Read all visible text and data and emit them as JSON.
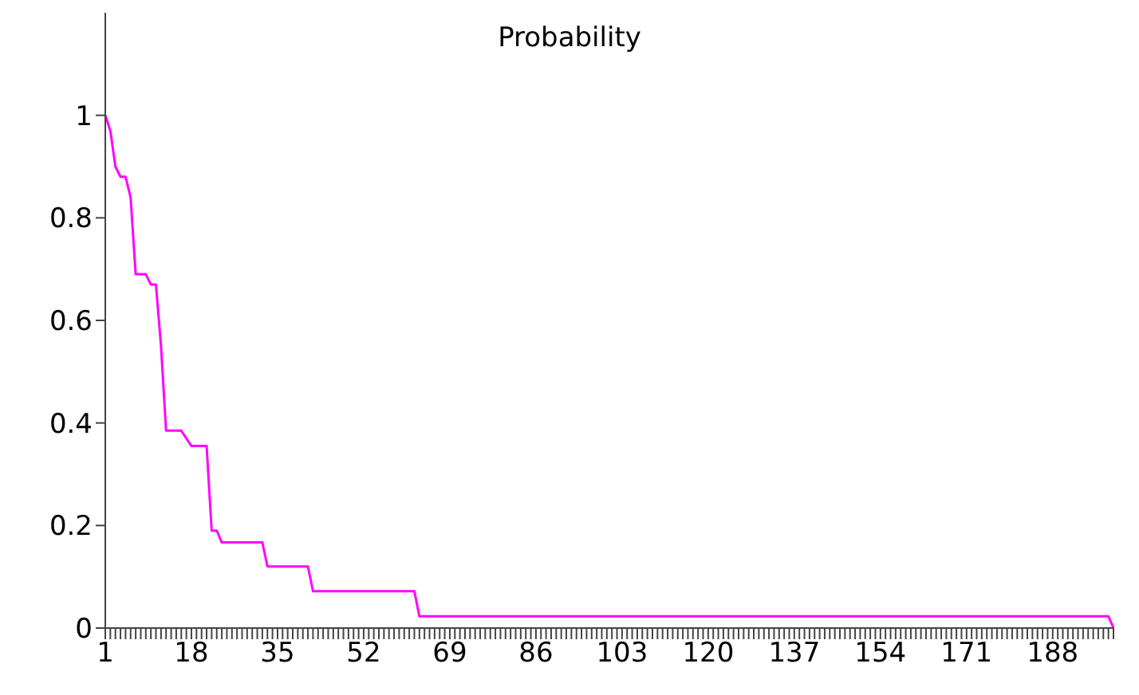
{
  "chart_data": {
    "type": "line",
    "title": "Probability",
    "categories": [
      "1",
      null,
      null,
      null,
      null,
      null,
      null,
      null,
      null,
      null,
      null,
      null,
      null,
      null,
      null,
      null,
      null,
      "18",
      null,
      null,
      null,
      null,
      null,
      null,
      null,
      null,
      null,
      null,
      null,
      null,
      null,
      null,
      null,
      null,
      "35",
      null,
      null,
      null,
      null,
      null,
      null,
      null,
      null,
      null,
      null,
      null,
      null,
      null,
      null,
      null,
      null,
      "52",
      null,
      null,
      null,
      null,
      null,
      null,
      null,
      null,
      null,
      null,
      null,
      null,
      null,
      null,
      null,
      null,
      "69",
      null,
      null,
      null,
      null,
      null,
      null,
      null,
      null,
      null,
      null,
      null,
      null,
      null,
      null,
      null,
      null,
      "86",
      null,
      null,
      null,
      null,
      null,
      null,
      null,
      null,
      null,
      null,
      null,
      null,
      null,
      null,
      null,
      null,
      "103",
      null,
      null,
      null,
      null,
      null,
      null,
      null,
      null,
      null,
      null,
      null,
      null,
      null,
      null,
      null,
      null,
      "120",
      null,
      null,
      null,
      null,
      null,
      null,
      null,
      null,
      null,
      null,
      null,
      null,
      null,
      null,
      null,
      null,
      "137",
      null,
      null,
      null,
      null,
      null,
      null,
      null,
      null,
      null,
      null,
      null,
      null,
      null,
      null,
      null,
      null,
      "154",
      null,
      null,
      null,
      null,
      null,
      null,
      null,
      null,
      null,
      null,
      null,
      null,
      null,
      null,
      null,
      null,
      "171",
      null,
      null,
      null,
      null,
      null,
      null,
      null,
      null,
      null,
      null,
      null,
      null,
      null,
      null,
      null,
      null,
      "188",
      null,
      null,
      null,
      null,
      null,
      null,
      null,
      null,
      null,
      null,
      null,
      null
    ],
    "series": [
      {
        "color": "#ff00ff",
        "values": [
          1,
          0.97,
          0.9,
          0.88,
          0.88,
          0.84,
          0.69,
          0.69,
          0.69,
          0.67,
          0.67,
          0.55,
          0.385,
          0.385,
          0.385,
          0.385,
          0.37,
          0.355,
          0.355,
          0.355,
          0.355,
          0.19,
          0.19,
          0.167,
          0.167,
          0.167,
          0.167,
          0.167,
          0.167,
          0.167,
          0.167,
          0.167,
          0.12,
          0.12,
          0.12,
          0.12,
          0.12,
          0.12,
          0.12,
          0.12,
          0.12,
          0.072,
          0.072,
          0.072,
          0.072,
          0.072,
          0.072,
          0.072,
          0.072,
          0.072,
          0.072,
          0.072,
          0.072,
          0.072,
          0.072,
          0.072,
          0.072,
          0.072,
          0.072,
          0.072,
          0.072,
          0.072,
          0.023,
          0.023,
          0.023,
          0.023,
          0.023,
          0.023,
          0.023,
          0.023,
          0.023,
          0.023,
          0.023,
          0.023,
          0.023,
          0.023,
          0.023,
          0.023,
          0.023,
          0.023,
          0.023,
          0.023,
          0.023,
          0.023,
          0.023,
          0.023,
          0.023,
          0.023,
          0.023,
          0.023,
          0.023,
          0.023,
          0.023,
          0.023,
          0.023,
          0.023,
          0.023,
          0.023,
          0.023,
          0.023,
          0.023,
          0.023,
          0.023,
          0.023,
          0.023,
          0.023,
          0.023,
          0.023,
          0.023,
          0.023,
          0.023,
          0.023,
          0.023,
          0.023,
          0.023,
          0.023,
          0.023,
          0.023,
          0.023,
          0.023,
          0.023,
          0.023,
          0.023,
          0.023,
          0.023,
          0.023,
          0.023,
          0.023,
          0.023,
          0.023,
          0.023,
          0.023,
          0.023,
          0.023,
          0.023,
          0.023,
          0.023,
          0.023,
          0.023,
          0.023,
          0.023,
          0.023,
          0.023,
          0.023,
          0.023,
          0.023,
          0.023,
          0.023,
          0.023,
          0.023,
          0.023,
          0.023,
          0.023,
          0.023,
          0.023,
          0.023,
          0.023,
          0.023,
          0.023,
          0.023,
          0.023,
          0.023,
          0.023,
          0.023,
          0.023,
          0.023,
          0.023,
          0.023,
          0.023,
          0.023,
          0.023,
          0.023,
          0.023,
          0.023,
          0.023,
          0.023,
          0.023,
          0.023,
          0.023,
          0.023,
          0.023,
          0.023,
          0.023,
          0.023,
          0.023,
          0.023,
          0.023,
          0.023,
          0.023,
          0.023,
          0.023,
          0.023,
          0.023,
          0.023,
          0.023,
          0.023,
          0.023,
          0.023,
          0.023,
          0
        ]
      }
    ],
    "ylim": [
      0,
      1.2
    ],
    "yticks": [
      0,
      0.2,
      0.4,
      0.6,
      0.8,
      1
    ],
    "grid": false,
    "legend": false,
    "marker": "none",
    "line_style": "solid"
  }
}
